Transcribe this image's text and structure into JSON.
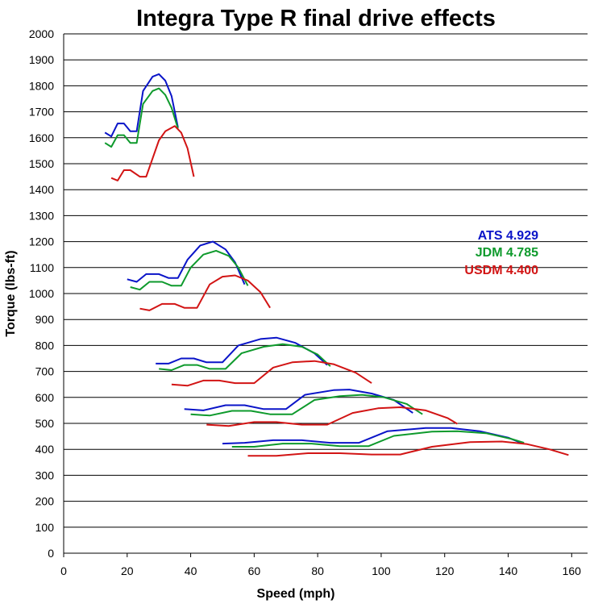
{
  "chart_data": {
    "type": "line",
    "title": "Integra Type R final drive effects",
    "xlabel": "Speed (mph)",
    "ylabel": "Torque (lbs-ft)",
    "xlim": [
      0,
      165
    ],
    "ylim": [
      0,
      2000
    ],
    "xticks": [
      0,
      20,
      40,
      60,
      80,
      100,
      120,
      140,
      160
    ],
    "yticks": [
      0,
      100,
      200,
      300,
      400,
      500,
      600,
      700,
      800,
      900,
      1000,
      1100,
      1200,
      1300,
      1400,
      1500,
      1600,
      1700,
      1800,
      1900,
      2000
    ],
    "grid": "horizontal",
    "legend_position": "right",
    "series": [
      {
        "name": "ATS 4.929",
        "color": "#0a14c8",
        "gears": [
          [
            [
              13,
              1620
            ],
            [
              15,
              1605
            ],
            [
              17,
              1655
            ],
            [
              19,
              1655
            ],
            [
              21,
              1625
            ],
            [
              23,
              1625
            ],
            [
              25,
              1780
            ],
            [
              28,
              1835
            ],
            [
              30,
              1845
            ],
            [
              32,
              1820
            ],
            [
              34,
              1760
            ],
            [
              36,
              1640
            ]
          ],
          [
            [
              20,
              1055
            ],
            [
              23,
              1045
            ],
            [
              26,
              1075
            ],
            [
              30,
              1075
            ],
            [
              33,
              1060
            ],
            [
              36,
              1060
            ],
            [
              39,
              1130
            ],
            [
              43,
              1185
            ],
            [
              47,
              1200
            ],
            [
              51,
              1170
            ],
            [
              54,
              1120
            ],
            [
              57,
              1035
            ]
          ],
          [
            [
              29,
              730
            ],
            [
              33,
              730
            ],
            [
              37,
              750
            ],
            [
              41,
              750
            ],
            [
              45,
              735
            ],
            [
              50,
              735
            ],
            [
              55,
              800
            ],
            [
              62,
              825
            ],
            [
              67,
              830
            ],
            [
              73,
              810
            ],
            [
              79,
              770
            ],
            [
              83,
              725
            ]
          ],
          [
            [
              38,
              555
            ],
            [
              44,
              550
            ],
            [
              51,
              570
            ],
            [
              57,
              570
            ],
            [
              63,
              555
            ],
            [
              70,
              555
            ],
            [
              76,
              610
            ],
            [
              85,
              628
            ],
            [
              90,
              630
            ],
            [
              97,
              615
            ],
            [
              104,
              590
            ],
            [
              110,
              540
            ]
          ],
          [
            [
              50,
              422
            ],
            [
              57,
              425
            ],
            [
              66,
              435
            ],
            [
              75,
              435
            ],
            [
              84,
              425
            ],
            [
              93,
              425
            ],
            [
              102,
              470
            ],
            [
              114,
              482
            ],
            [
              122,
              482
            ],
            [
              131,
              470
            ],
            [
              140,
              445
            ],
            [
              144,
              425
            ]
          ]
        ]
      },
      {
        "name": "JDM 4.785",
        "color": "#0e9a2c",
        "gears": [
          [
            [
              13,
              1580
            ],
            [
              15,
              1565
            ],
            [
              17,
              1610
            ],
            [
              19,
              1610
            ],
            [
              21,
              1580
            ],
            [
              23,
              1580
            ],
            [
              25,
              1730
            ],
            [
              28,
              1780
            ],
            [
              30,
              1790
            ],
            [
              32,
              1765
            ],
            [
              34,
              1715
            ],
            [
              36,
              1635
            ]
          ],
          [
            [
              21,
              1025
            ],
            [
              24,
              1015
            ],
            [
              27,
              1045
            ],
            [
              31,
              1045
            ],
            [
              34,
              1030
            ],
            [
              37,
              1030
            ],
            [
              40,
              1100
            ],
            [
              44,
              1150
            ],
            [
              48,
              1165
            ],
            [
              52,
              1145
            ],
            [
              55,
              1100
            ],
            [
              58,
              1030
            ]
          ],
          [
            [
              30,
              710
            ],
            [
              34,
              705
            ],
            [
              38,
              725
            ],
            [
              42,
              725
            ],
            [
              46,
              710
            ],
            [
              51,
              710
            ],
            [
              56,
              770
            ],
            [
              63,
              795
            ],
            [
              69,
              805
            ],
            [
              75,
              795
            ],
            [
              80,
              765
            ],
            [
              84,
              720
            ]
          ],
          [
            [
              40,
              535
            ],
            [
              46,
              530
            ],
            [
              53,
              548
            ],
            [
              59,
              548
            ],
            [
              65,
              535
            ],
            [
              72,
              535
            ],
            [
              79,
              590
            ],
            [
              87,
              605
            ],
            [
              94,
              610
            ],
            [
              101,
              600
            ],
            [
              108,
              575
            ],
            [
              113,
              535
            ]
          ],
          [
            [
              53,
              410
            ],
            [
              60,
              410
            ],
            [
              69,
              422
            ],
            [
              78,
              422
            ],
            [
              87,
              412
            ],
            [
              96,
              412
            ],
            [
              104,
              452
            ],
            [
              116,
              468
            ],
            [
              124,
              470
            ],
            [
              133,
              462
            ],
            [
              141,
              440
            ],
            [
              145,
              425
            ]
          ]
        ]
      },
      {
        "name": "USDM 4.400",
        "color": "#d21414",
        "gears": [
          [
            [
              15,
              1445
            ],
            [
              17,
              1435
            ],
            [
              19,
              1475
            ],
            [
              21,
              1475
            ],
            [
              24,
              1450
            ],
            [
              26,
              1450
            ],
            [
              30,
              1590
            ],
            [
              32,
              1625
            ],
            [
              35,
              1645
            ],
            [
              37,
              1620
            ],
            [
              39,
              1560
            ],
            [
              41,
              1450
            ]
          ],
          [
            [
              24,
              942
            ],
            [
              27,
              935
            ],
            [
              31,
              960
            ],
            [
              35,
              960
            ],
            [
              38,
              945
            ],
            [
              42,
              945
            ],
            [
              46,
              1035
            ],
            [
              50,
              1065
            ],
            [
              54,
              1070
            ],
            [
              58,
              1050
            ],
            [
              62,
              1005
            ],
            [
              65,
              945
            ]
          ],
          [
            [
              34,
              650
            ],
            [
              39,
              645
            ],
            [
              44,
              665
            ],
            [
              49,
              665
            ],
            [
              54,
              655
            ],
            [
              60,
              655
            ],
            [
              66,
              715
            ],
            [
              72,
              735
            ],
            [
              79,
              740
            ],
            [
              85,
              728
            ],
            [
              92,
              695
            ],
            [
              97,
              655
            ]
          ],
          [
            [
              45,
              495
            ],
            [
              52,
              490
            ],
            [
              60,
              505
            ],
            [
              67,
              505
            ],
            [
              75,
              495
            ],
            [
              83,
              495
            ],
            [
              91,
              540
            ],
            [
              99,
              558
            ],
            [
              106,
              562
            ],
            [
              114,
              550
            ],
            [
              121,
              520
            ],
            [
              124,
              498
            ]
          ],
          [
            [
              58,
              375
            ],
            [
              67,
              375
            ],
            [
              77,
              385
            ],
            [
              87,
              385
            ],
            [
              97,
              380
            ],
            [
              106,
              380
            ],
            [
              116,
              410
            ],
            [
              128,
              428
            ],
            [
              138,
              430
            ],
            [
              146,
              420
            ],
            [
              153,
              400
            ],
            [
              159,
              378
            ]
          ]
        ]
      }
    ]
  }
}
